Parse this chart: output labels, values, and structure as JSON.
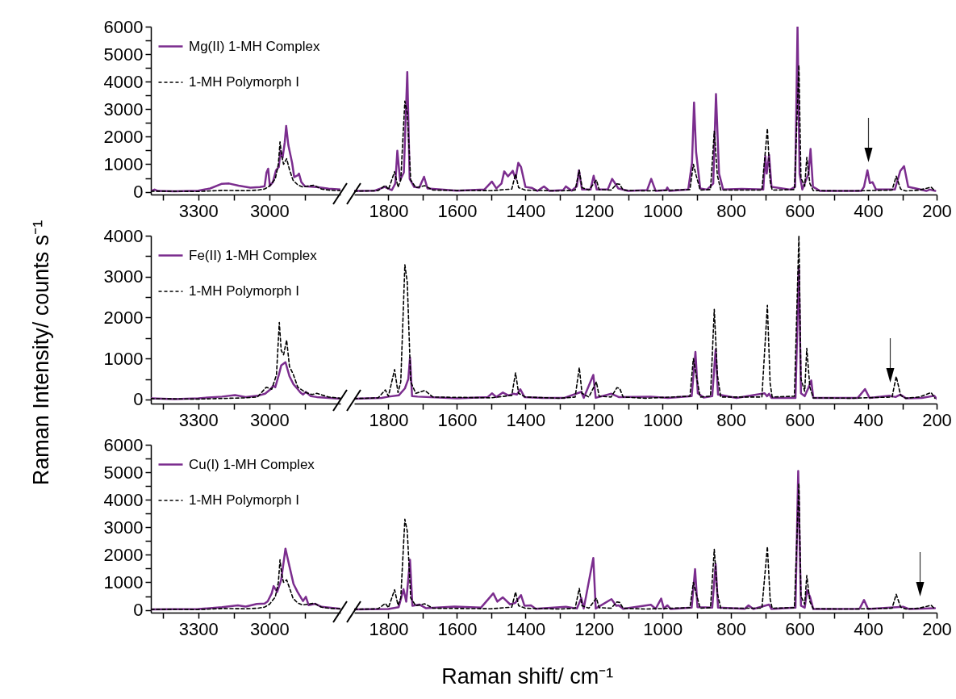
{
  "chart_data": [
    {
      "type": "line",
      "legend": "top left",
      "xlim": [
        3500,
        2700
      ],
      "xticks": [
        {
          "value": 3450,
          "label": null
        },
        3300,
        {
          "value": 3150,
          "label": null
        },
        3000,
        {
          "value": 2850,
          "label": null
        }
      ],
      "ylim": [
        -100,
        6000
      ],
      "yticks": [
        0,
        {
          "value": 500,
          "label": null
        },
        1000,
        {
          "value": 1500,
          "label": null
        },
        2000,
        {
          "value": 2500,
          "label": null
        },
        3000,
        {
          "value": 3500,
          "label": null
        },
        4000,
        {
          "value": 4500,
          "label": null
        },
        5000,
        {
          "value": 5500,
          "label": null
        },
        6000
      ],
      "series": [
        {
          "name": "Mg(II) 1-MH Complex",
          "color": "#7b2d8e",
          "line_style": "solid",
          "x": [
            3500,
            3484,
            3470,
            3400,
            3300,
            3250,
            3200,
            3170,
            3130,
            3080,
            3040,
            3020,
            3012,
            3005,
            2998,
            2985,
            2972,
            2960,
            2953,
            2944,
            2935,
            2929,
            2920,
            2904,
            2895,
            2880,
            2875,
            2865,
            2850,
            2800,
            2750,
            2700
          ],
          "values": [
            30,
            80,
            30,
            20,
            40,
            120,
            290,
            300,
            220,
            150,
            170,
            200,
            700,
            840,
            220,
            350,
            780,
            900,
            1490,
            1240,
            1800,
            2390,
            1700,
            1050,
            530,
            600,
            660,
            350,
            200,
            170,
            110,
            80
          ]
        },
        {
          "name": "1-MH Polymorph I",
          "color": "#000000",
          "line_style": "dashed",
          "x": [
            3500,
            3400,
            3300,
            3200,
            3100,
            3050,
            3020,
            3000,
            2975,
            2962,
            2955,
            2948,
            2940,
            2927,
            2915,
            2900,
            2880,
            2860,
            2840,
            2812,
            2780,
            2750,
            2700
          ],
          "values": [
            20,
            20,
            10,
            50,
            40,
            60,
            100,
            200,
            470,
            1000,
            1810,
            1300,
            1000,
            1200,
            800,
            420,
            250,
            180,
            200,
            240,
            100,
            60,
            40
          ]
        }
      ]
    },
    {
      "type": "line",
      "tick_labels": "x",
      "xlim": [
        1900,
        200
      ],
      "xticks": [
        1800,
        {
          "value": 1700,
          "label": null
        },
        1600,
        {
          "value": 1500,
          "label": null
        },
        1400,
        {
          "value": 1300,
          "label": null
        },
        1200,
        {
          "value": 1100,
          "label": null
        },
        1000,
        {
          "value": 900,
          "label": null
        },
        800,
        {
          "value": 700,
          "label": null
        },
        600,
        {
          "value": 500,
          "label": null
        },
        400,
        {
          "value": 300,
          "label": null
        },
        200
      ],
      "ylim": [
        -100,
        6000
      ],
      "series": [
        {
          "color": "#7b2d8e",
          "line_style": "solid",
          "x": [
            1900,
            1840,
            1811,
            1790,
            1780,
            1774,
            1766,
            1755,
            1745,
            1738,
            1725,
            1710,
            1696,
            1686,
            1600,
            1520,
            1498,
            1485,
            1470,
            1462,
            1451,
            1437,
            1429,
            1421,
            1413,
            1400,
            1382,
            1365,
            1346,
            1330,
            1290,
            1282,
            1265,
            1250,
            1244,
            1235,
            1210,
            1201,
            1192,
            1160,
            1147,
            1129,
            1100,
            1045,
            1033,
            1020,
            990,
            986,
            980,
            925,
            914,
            908,
            902,
            890,
            870,
            852,
            844,
            835,
            823,
            769,
            706,
            700,
            696,
            689,
            682,
            627,
            613,
            606,
            600,
            592,
            574,
            568,
            561,
            540,
            420,
            412,
            402,
            395,
            387,
            377,
            322,
            306,
            295,
            283,
            255,
            230,
            220,
            204
          ],
          "values": [
            30,
            40,
            175,
            60,
            300,
            1490,
            420,
            700,
            4350,
            470,
            175,
            150,
            545,
            120,
            40,
            80,
            370,
            125,
            300,
            740,
            560,
            760,
            470,
            1050,
            900,
            175,
            145,
            30,
            195,
            30,
            60,
            195,
            40,
            200,
            780,
            80,
            80,
            580,
            80,
            80,
            470,
            120,
            30,
            60,
            470,
            30,
            60,
            155,
            30,
            80,
            1050,
            3240,
            1440,
            120,
            80,
            300,
            3550,
            660,
            80,
            105,
            80,
            1290,
            660,
            1340,
            180,
            80,
            180,
            6000,
            650,
            80,
            660,
            1555,
            180,
            30,
            30,
            180,
            780,
            320,
            350,
            80,
            80,
            760,
            930,
            180,
            105,
            30,
            80,
            30
          ]
        },
        {
          "color": "#000000",
          "line_style": "dashed",
          "x": [
            1900,
            1830,
            1809,
            1800,
            1782,
            1772,
            1764,
            1752,
            1745,
            1735,
            1720,
            1694,
            1670,
            1500,
            1440,
            1429,
            1420,
            1400,
            1300,
            1255,
            1243,
            1235,
            1215,
            1193,
            1185,
            1150,
            1133,
            1125,
            1115,
            1050,
            920,
            910,
            902,
            890,
            860,
            849,
            840,
            830,
            710,
            694,
            686,
            680,
            615,
            602,
            596,
            585,
            579,
            570,
            560,
            450,
            330,
            318,
            305,
            290,
            251,
            216,
            205
          ],
          "values": [
            20,
            40,
            235,
            80,
            730,
            170,
            430,
            3290,
            2860,
            430,
            150,
            220,
            60,
            40,
            100,
            650,
            150,
            60,
            30,
            60,
            780,
            150,
            60,
            430,
            80,
            60,
            290,
            270,
            60,
            30,
            80,
            1000,
            600,
            60,
            80,
            2200,
            600,
            60,
            60,
            2300,
            400,
            60,
            80,
            4600,
            500,
            200,
            1250,
            300,
            40,
            30,
            60,
            565,
            100,
            30,
            60,
            170,
            30
          ]
        }
      ]
    },
    {
      "type": "line",
      "legend": "top left",
      "ylabel": "Raman Intensity/ counts s⁻¹",
      "xlim": [
        3500,
        2700
      ],
      "xticks": [
        {
          "value": 3450,
          "label": null
        },
        3300,
        {
          "value": 3150,
          "label": null
        },
        3000,
        {
          "value": 2850,
          "label": null
        }
      ],
      "ylim": [
        -100,
        4000
      ],
      "yticks": [
        0,
        {
          "value": 500,
          "label": null
        },
        1000,
        {
          "value": 1500,
          "label": null
        },
        2000,
        {
          "value": 2500,
          "label": null
        },
        3000,
        {
          "value": 3500,
          "label": null
        },
        4000
      ],
      "series": [
        {
          "name": "Fe(II) 1-MH Complex",
          "color": "#7b2d8e",
          "line_style": "solid",
          "x": [
            3500,
            3400,
            3300,
            3200,
            3145,
            3100,
            3050,
            3018,
            2995,
            2984,
            2975,
            2960,
            2950,
            2932,
            2915,
            2898,
            2880,
            2869,
            2858,
            2846,
            2825,
            2800,
            2750,
            2700
          ],
          "values": [
            30,
            10,
            30,
            70,
            105,
            60,
            90,
            140,
            250,
            335,
            300,
            600,
            830,
            910,
            565,
            370,
            250,
            170,
            120,
            185,
            80,
            60,
            40,
            20
          ]
        },
        {
          "name": "1-MH Polymorph I",
          "color": "#000000",
          "line_style": "dashed",
          "x": [
            3500,
            3300,
            3100,
            3050,
            3013,
            2990,
            2970,
            2958,
            2950,
            2940,
            2927,
            2915,
            2900,
            2880,
            2846,
            2820,
            2800,
            2750,
            2700
          ],
          "values": [
            20,
            10,
            40,
            60,
            300,
            250,
            600,
            1880,
            1200,
            1090,
            1450,
            800,
            630,
            300,
            170,
            120,
            150,
            60,
            30
          ]
        }
      ]
    },
    {
      "type": "line",
      "tick_labels": "x",
      "xlim": [
        1900,
        200
      ],
      "xticks": [
        1800,
        {
          "value": 1700,
          "label": null
        },
        1600,
        {
          "value": 1500,
          "label": null
        },
        1400,
        {
          "value": 1300,
          "label": null
        },
        1200,
        {
          "value": 1100,
          "label": null
        },
        1000,
        {
          "value": 900,
          "label": null
        },
        800,
        {
          "value": 700,
          "label": null
        },
        600,
        {
          "value": 500,
          "label": null
        },
        400,
        {
          "value": 300,
          "label": null
        },
        200
      ],
      "ylim": [
        -100,
        4000
      ],
      "series": [
        {
          "color": "#7b2d8e",
          "line_style": "solid",
          "x": [
            1900,
            1820,
            1799,
            1770,
            1752,
            1742,
            1737,
            1731,
            1715,
            1600,
            1510,
            1498,
            1485,
            1466,
            1450,
            1435,
            1425,
            1415,
            1403,
            1350,
            1286,
            1237,
            1230,
            1202,
            1195,
            1149,
            1128,
            1035,
            984,
            915,
            904,
            897,
            880,
            855,
            845,
            838,
            784,
            702,
            695,
            689,
            682,
            612,
            602,
            596,
            585,
            575,
            566,
            560,
            430,
            409,
            396,
            337,
            320,
            306,
            290,
            243,
            207,
            200
          ],
          "values": [
            20,
            40,
            70,
            100,
            270,
            500,
            1025,
            80,
            70,
            30,
            60,
            150,
            60,
            170,
            100,
            140,
            120,
            250,
            60,
            40,
            40,
            185,
            40,
            600,
            40,
            140,
            60,
            70,
            40,
            80,
            1160,
            150,
            50,
            80,
            1220,
            120,
            40,
            150,
            80,
            140,
            40,
            40,
            3260,
            150,
            80,
            270,
            465,
            40,
            40,
            255,
            40,
            90,
            60,
            120,
            30,
            40,
            90,
            20
          ]
        },
        {
          "color": "#000000",
          "line_style": "dashed",
          "x": [
            1900,
            1830,
            1809,
            1800,
            1782,
            1772,
            1764,
            1752,
            1745,
            1735,
            1720,
            1694,
            1670,
            1500,
            1440,
            1429,
            1420,
            1400,
            1300,
            1255,
            1243,
            1235,
            1215,
            1193,
            1185,
            1150,
            1133,
            1125,
            1115,
            1050,
            920,
            910,
            902,
            890,
            860,
            849,
            840,
            830,
            710,
            694,
            686,
            680,
            615,
            602,
            596,
            585,
            579,
            570,
            560,
            450,
            330,
            318,
            305,
            290,
            251,
            216,
            205
          ],
          "values": [
            20,
            40,
            235,
            80,
            730,
            170,
            430,
            3290,
            2860,
            430,
            150,
            220,
            60,
            40,
            100,
            650,
            150,
            60,
            30,
            60,
            780,
            150,
            60,
            430,
            80,
            60,
            290,
            270,
            60,
            30,
            80,
            1000,
            600,
            60,
            80,
            2200,
            600,
            60,
            60,
            2300,
            400,
            60,
            80,
            4000,
            500,
            200,
            1250,
            300,
            40,
            30,
            60,
            565,
            100,
            30,
            60,
            170,
            30
          ]
        }
      ]
    },
    {
      "type": "line",
      "legend": "top left",
      "xlim": [
        3500,
        2700
      ],
      "xticks": [
        {
          "value": 3450,
          "label": null
        },
        3300,
        {
          "value": 3150,
          "label": null
        },
        3000,
        {
          "value": 2850,
          "label": null
        }
      ],
      "ylim": [
        -100,
        6000
      ],
      "yticks": [
        0,
        {
          "value": 500,
          "label": null
        },
        1000,
        {
          "value": 1500,
          "label": null
        },
        2000,
        {
          "value": 2500,
          "label": null
        },
        3000,
        {
          "value": 3500,
          "label": null
        },
        4000,
        {
          "value": 4500,
          "label": null
        },
        5000,
        {
          "value": 5500,
          "label": null
        },
        6000
      ],
      "series": [
        {
          "name": "Cu(I) 1-MH Complex",
          "color": "#7b2d8e",
          "line_style": "solid",
          "x": [
            3500,
            3300,
            3200,
            3133,
            3100,
            3053,
            3020,
            3007,
            2990,
            2982,
            2967,
            2950,
            2932,
            2915,
            2898,
            2881,
            2858,
            2846,
            2834,
            2806,
            2780,
            2700
          ],
          "values": [
            20,
            30,
            100,
            165,
            120,
            215,
            230,
            310,
            600,
            865,
            650,
            1090,
            2225,
            1575,
            940,
            650,
            320,
            475,
            170,
            220,
            110,
            40
          ]
        },
        {
          "name": "1-MH Polymorph I",
          "color": "#000000",
          "line_style": "dashed",
          "x": [
            3500,
            3400,
            3300,
            3200,
            3100,
            3050,
            3020,
            3000,
            2975,
            2962,
            2955,
            2948,
            2940,
            2927,
            2915,
            2900,
            2880,
            2860,
            2840,
            2812,
            2780,
            2750,
            2700
          ],
          "values": [
            20,
            20,
            10,
            50,
            40,
            60,
            100,
            200,
            470,
            1000,
            1820,
            1300,
            1000,
            1090,
            800,
            420,
            250,
            180,
            200,
            240,
            100,
            60,
            40
          ]
        }
      ]
    },
    {
      "type": "line",
      "tick_labels": "x",
      "xlabel": "Raman shift/ cm⁻¹",
      "xlim": [
        1900,
        200
      ],
      "xticks": [
        1800,
        {
          "value": 1700,
          "label": null
        },
        1600,
        {
          "value": 1500,
          "label": null
        },
        1400,
        {
          "value": 1300,
          "label": null
        },
        1200,
        {
          "value": 1100,
          "label": null
        },
        1000,
        {
          "value": 900,
          "label": null
        },
        800,
        {
          "value": 700,
          "label": null
        },
        600,
        {
          "value": 500,
          "label": null
        },
        400,
        {
          "value": 300,
          "label": null
        },
        200
      ],
      "ylim": [
        -100,
        6000
      ],
      "series": [
        {
          "color": "#7b2d8e",
          "line_style": "solid",
          "x": [
            1900,
            1800,
            1770,
            1756,
            1748,
            1737,
            1730,
            1710,
            1690,
            1607,
            1530,
            1494,
            1482,
            1466,
            1445,
            1430,
            1413,
            1403,
            1384,
            1370,
            1282,
            1250,
            1237,
            1230,
            1202,
            1195,
            1149,
            1135,
            1128,
            1115,
            1034,
            1020,
            1004,
            996,
            986,
            976,
            915,
            905,
            898,
            855,
            845,
            838,
            760,
            749,
            735,
            689,
            682,
            612,
            604,
            596,
            585,
            578,
            569,
            560,
            425,
            412,
            400,
            298,
            280,
            205
          ],
          "values": [
            20,
            30,
            100,
            750,
            300,
            1820,
            150,
            195,
            60,
            120,
            80,
            600,
            300,
            455,
            200,
            250,
            535,
            150,
            165,
            40,
            115,
            50,
            430,
            50,
            1885,
            50,
            390,
            150,
            165,
            40,
            185,
            40,
            410,
            40,
            165,
            30,
            80,
            1480,
            100,
            80,
            1670,
            80,
            40,
            165,
            30,
            195,
            30,
            80,
            5045,
            150,
            80,
            720,
            455,
            30,
            40,
            360,
            30,
            115,
            30,
            60
          ]
        },
        {
          "color": "#000000",
          "line_style": "dashed",
          "x": [
            1900,
            1830,
            1809,
            1800,
            1782,
            1772,
            1764,
            1752,
            1745,
            1735,
            1720,
            1694,
            1670,
            1500,
            1440,
            1429,
            1420,
            1400,
            1300,
            1255,
            1243,
            1235,
            1215,
            1193,
            1185,
            1150,
            1133,
            1125,
            1115,
            1050,
            920,
            910,
            902,
            890,
            860,
            849,
            840,
            830,
            710,
            694,
            686,
            680,
            615,
            602,
            596,
            585,
            579,
            570,
            560,
            450,
            330,
            318,
            305,
            290,
            251,
            216,
            205
          ],
          "values": [
            20,
            40,
            235,
            80,
            730,
            170,
            430,
            3290,
            2860,
            430,
            150,
            220,
            60,
            40,
            100,
            650,
            150,
            60,
            30,
            60,
            780,
            150,
            60,
            430,
            80,
            60,
            290,
            270,
            60,
            30,
            80,
            1000,
            600,
            60,
            80,
            2200,
            600,
            60,
            60,
            2300,
            400,
            60,
            80,
            4600,
            500,
            200,
            1250,
            300,
            40,
            30,
            60,
            565,
            100,
            30,
            60,
            170,
            30
          ]
        }
      ]
    }
  ]
}
